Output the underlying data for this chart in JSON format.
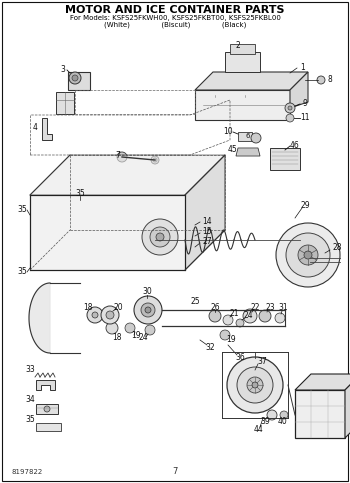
{
  "title": "MOTOR AND ICE CONTAINER PARTS",
  "subtitle": "For Models: KSFS25FKWH00, KSFS25FKBT00, KSFS25FKBL00",
  "subtitle2": "(White)              (Biscuit)              (Black)",
  "page_number": "7",
  "doc_number": "8197822",
  "bg_color": "#ffffff",
  "border_color": "#000000",
  "text_color": "#000000",
  "figsize": [
    3.5,
    4.83
  ],
  "dpi": 100
}
